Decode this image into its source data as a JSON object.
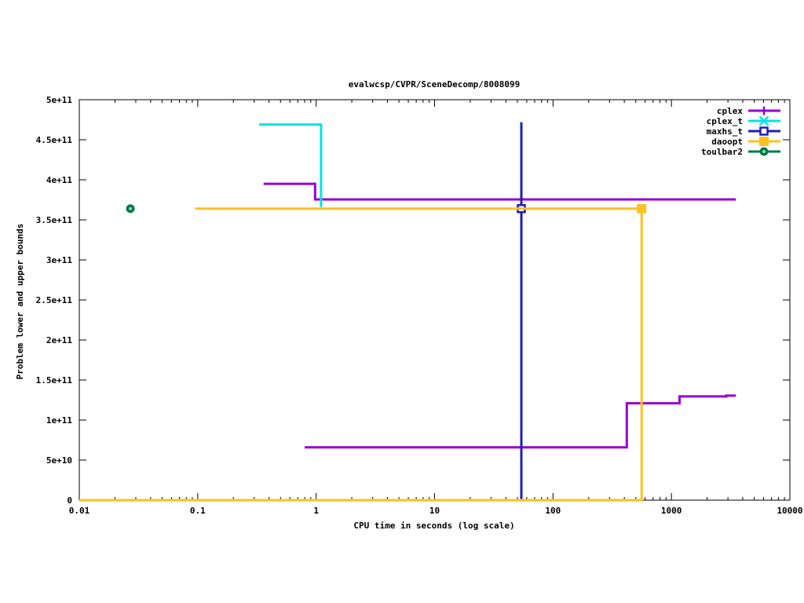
{
  "chart_data": {
    "type": "line",
    "title": "evalwcsp/CVPR/SceneDecomp/8008099",
    "xlabel": "CPU time in seconds (log scale)",
    "ylabel": "Problem lower and upper bounds",
    "xscale": "log",
    "xlim": [
      0.01,
      10000
    ],
    "ylim": [
      0,
      500000000000
    ],
    "xticks": [
      {
        "v": 0.01,
        "label": "0.01"
      },
      {
        "v": 0.1,
        "label": "0.1"
      },
      {
        "v": 1,
        "label": "1"
      },
      {
        "v": 10,
        "label": "10"
      },
      {
        "v": 100,
        "label": "100"
      },
      {
        "v": 1000,
        "label": "1000"
      },
      {
        "v": 10000,
        "label": "10000"
      }
    ],
    "yticks": [
      {
        "v": 0,
        "label": "0"
      },
      {
        "v": 50000000000,
        "label": "5e+10"
      },
      {
        "v": 100000000000,
        "label": "1e+11"
      },
      {
        "v": 150000000000,
        "label": "1.5e+11"
      },
      {
        "v": 200000000000,
        "label": "2e+11"
      },
      {
        "v": 250000000000,
        "label": "2.5e+11"
      },
      {
        "v": 300000000000,
        "label": "3e+11"
      },
      {
        "v": 350000000000,
        "label": "3.5e+11"
      },
      {
        "v": 400000000000,
        "label": "4e+11"
      },
      {
        "v": 450000000000,
        "label": "4.5e+11"
      },
      {
        "v": 500000000000,
        "label": "5e+11"
      }
    ],
    "grid": false,
    "legend_position": "top-right",
    "series": [
      {
        "name": "cplex",
        "color": "#9400d3",
        "marker": "plus",
        "lines": [
          {
            "role": "upper",
            "points": [
              [
                0.36,
                395000000000
              ],
              [
                0.98,
                395000000000
              ],
              [
                0.98,
                375500000000
              ],
              [
                3500,
                375500000000
              ]
            ]
          },
          {
            "role": "lower",
            "points": [
              [
                0.8,
                66000000000
              ],
              [
                420,
                66000000000
              ],
              [
                420,
                121000000000
              ],
              [
                1170,
                121000000000
              ],
              [
                1170,
                129500000000
              ],
              [
                2900,
                129500000000
              ],
              [
                2900,
                130500000000
              ],
              [
                3500,
                130500000000
              ]
            ]
          }
        ],
        "markers": []
      },
      {
        "name": "cplex_t",
        "color": "#00e5e5",
        "marker": "x",
        "lines": [
          {
            "role": "upper",
            "points": [
              [
                0.33,
                469000000000
              ],
              [
                1.1,
                469000000000
              ],
              [
                1.1,
                366000000000
              ]
            ]
          }
        ],
        "markers": []
      },
      {
        "name": "maxhs_t",
        "color": "#1f1fb4",
        "marker": "open-square",
        "lines": [
          {
            "role": "range",
            "points": [
              [
                54,
                472000000000
              ],
              [
                54,
                0
              ]
            ]
          }
        ],
        "markers": [
          [
            54,
            364000000000
          ]
        ]
      },
      {
        "name": "daoopt",
        "color": "#ffc020",
        "marker": "filled-square",
        "lines": [
          {
            "role": "upper",
            "points": [
              [
                0.095,
                364000000000
              ],
              [
                560,
                364000000000
              ]
            ]
          },
          {
            "role": "lower",
            "points": [
              [
                0.01,
                0
              ],
              [
                560,
                0
              ],
              [
                560,
                364000000000
              ]
            ]
          }
        ],
        "markers": [
          [
            560,
            364000000000
          ]
        ]
      },
      {
        "name": "toulbar2",
        "color": "#007a4a",
        "marker": "circle",
        "lines": [],
        "markers": [
          [
            0.027,
            364000000000
          ]
        ]
      }
    ]
  }
}
